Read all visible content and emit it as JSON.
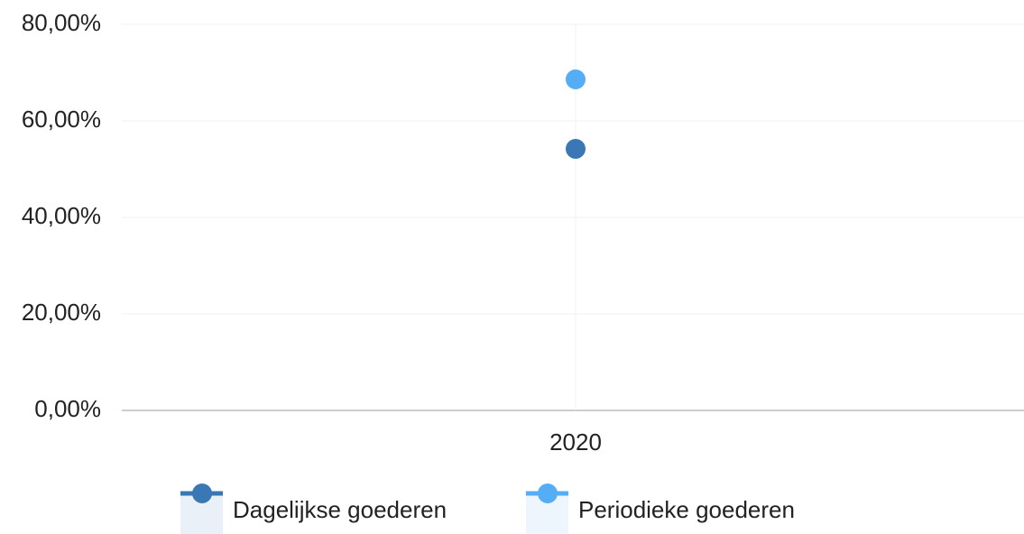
{
  "chart_data": {
    "type": "line",
    "categories": [
      "2020"
    ],
    "series": [
      {
        "name": "Dagelijkse goederen",
        "color": "#3a78b5",
        "values": [
          54.2
        ]
      },
      {
        "name": "Periodieke goederen",
        "color": "#55aef5",
        "values": [
          68.6
        ]
      }
    ],
    "ylim": [
      0,
      80
    ],
    "yticks": [
      {
        "value": 0,
        "label": "0,00%"
      },
      {
        "value": 20,
        "label": "20,00%"
      },
      {
        "value": 40,
        "label": "40,00%"
      },
      {
        "value": 60,
        "label": "60,00%"
      },
      {
        "value": 80,
        "label": "80,00%"
      }
    ],
    "grid": true
  }
}
